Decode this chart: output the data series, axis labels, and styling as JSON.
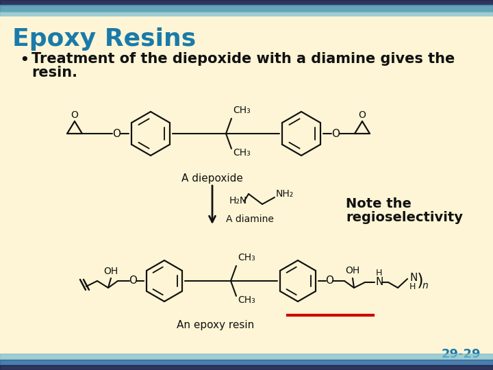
{
  "title": "Epoxy Resins",
  "title_color": "#1a7aaa",
  "title_fontsize": 26,
  "bg_color": "#fdf5d5",
  "header_color1": "#1a3060",
  "header_color2": "#5aaad0",
  "footer_color1": "#1a3060",
  "footer_color2": "#5aaad0",
  "bullet_text_line1": "Treatment of the diepoxide with a diamine gives the",
  "bullet_text_line2": "resin.",
  "bullet_fontsize": 15,
  "bullet_color": "#111111",
  "note_text_line1": "Note the",
  "note_text_line2": "regioselectivity",
  "note_fontsize": 14,
  "page_number": "29-29",
  "page_number_color": "#1a7aaa",
  "red_line_color": "#cc0000",
  "structure_color": "#111111"
}
